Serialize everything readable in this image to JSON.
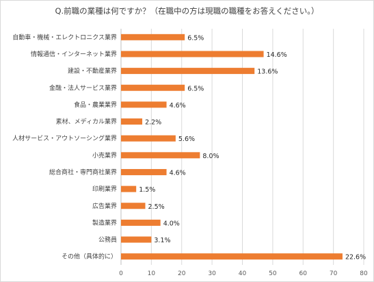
{
  "chart_data": {
    "type": "bar",
    "orientation": "horizontal",
    "title": "Q.前職の業種は何ですか？（在職中の方は現職の職種をお答えください。）",
    "categories": [
      "自動車・機械・エレクトロニクス業界",
      "情報通信・インターネット業界",
      "建設・不動産業界",
      "金融・法人サービス業界",
      "食品・農業業界",
      "素材、メディカル業界",
      "人材サービス・アウトソーシング業界",
      "小売業界",
      "総合商社・専門商社業界",
      "印刷業界",
      "広告業界",
      "製造業界",
      "公務員",
      "その他（具体的に）"
    ],
    "values": [
      6.5,
      14.6,
      13.6,
      6.5,
      4.6,
      2.2,
      5.6,
      8.0,
      4.6,
      1.5,
      2.5,
      4.0,
      3.1,
      22.6
    ],
    "value_labels": [
      "6.5%",
      "14.6%",
      "13.6%",
      "6.5%",
      "4.6%",
      "2.2%",
      "5.6%",
      "8.0%",
      "4.6%",
      "1.5%",
      "2.5%",
      "4.0%",
      "3.1%",
      "22.6%"
    ],
    "bar_lengths": [
      21,
      47,
      44,
      21,
      15,
      7,
      18,
      26,
      15,
      5,
      8,
      13,
      10,
      73
    ],
    "xlim": [
      0,
      80
    ],
    "xticks": [
      "0",
      "10",
      "20",
      "30",
      "40",
      "50",
      "60",
      "70",
      "80"
    ],
    "grid": true,
    "bar_color": "#ed7d31",
    "grid_color": "#d9d9d9"
  }
}
